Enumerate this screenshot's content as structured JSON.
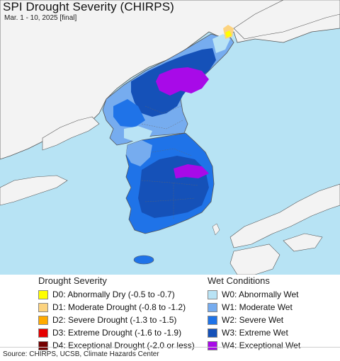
{
  "header": {
    "title": "SPI Drought Severity (CHIRPS)",
    "subtitle": "Mar. 1 - 10, 2025 [final]"
  },
  "colors": {
    "water": "#b7e3f4",
    "land_other": "#f3f3f3",
    "border": "#555555",
    "wet_w0": "#b9e3f5",
    "wet_w1": "#76acef",
    "wet_w2": "#1f73e8",
    "wet_w3": "#1551b8",
    "wet_w4": "#a80ae8",
    "dry_d0": "#ffff00",
    "dry_d1": "#fcd37f",
    "dry_d2": "#ffaa00",
    "dry_d3": "#e60000",
    "dry_d4": "#730000"
  },
  "legend": {
    "drought": {
      "heading": "Drought Severity",
      "items": [
        {
          "label": "D0: Abnormally Dry (-0.5 to -0.7)",
          "color": "#ffff00"
        },
        {
          "label": "D1: Moderate Drought (-0.8 to -1.2)",
          "color": "#fcd37f"
        },
        {
          "label": "D2: Severe Drought (-1.3 to -1.5)",
          "color": "#ffaa00"
        },
        {
          "label": "D3: Extreme Drought (-1.6 to -1.9)",
          "color": "#e60000"
        },
        {
          "label": "D4: Exceptional Drought (-2.0 or less)",
          "color": "#730000"
        }
      ]
    },
    "wet": {
      "heading": "Wet Conditions",
      "items": [
        {
          "label": "W0: Abnormally Wet",
          "color": "#b9e3f5"
        },
        {
          "label": "W1: Moderate Wet",
          "color": "#76acef"
        },
        {
          "label": "W2: Severe Wet",
          "color": "#1f73e8"
        },
        {
          "label": "W3: Extreme Wet",
          "color": "#1551b8"
        },
        {
          "label": "W4: Exceptional Wet",
          "color": "#a80ae8"
        }
      ]
    }
  },
  "footer": {
    "source": "Source: CHIRPS, UCSB, Climate Hazards Center"
  }
}
